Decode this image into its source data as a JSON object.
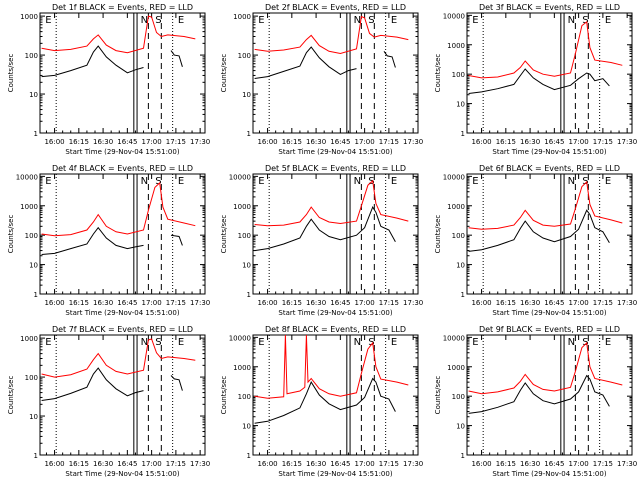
{
  "chart_data": [
    {
      "type": "line",
      "title": "Det 1f BLACK = Events, RED = LLD",
      "xlabel": "Start Time (29-Nov-04 15:51:00)",
      "ylabel": "Counts/sec",
      "x_ticks": [
        "16:00",
        "16:15",
        "16:30",
        "16:45",
        "17:00",
        "17:15",
        "17:30"
      ],
      "y_ticks": [
        "1",
        "10",
        "100",
        "1000"
      ],
      "ylim": [
        1,
        1000
      ],
      "y_scale": "log",
      "markers": [
        "E",
        "N",
        "S",
        "E"
      ],
      "series": [
        {
          "name": "RED",
          "color": "#ff0000",
          "x": [
            "15:52",
            "16:00",
            "16:10",
            "16:20",
            "16:24",
            "16:27",
            "16:32",
            "16:38",
            "16:45",
            "16:55",
            "16:58",
            "17:00",
            "17:03",
            "17:06",
            "17:10",
            "17:20",
            "17:27"
          ],
          "y": [
            150,
            130,
            140,
            170,
            260,
            330,
            180,
            130,
            115,
            150,
            1000,
            950,
            380,
            300,
            330,
            300,
            260
          ]
        },
        {
          "name": "BLACK",
          "color": "#000000",
          "x": [
            "15:52",
            "16:00",
            "16:10",
            "16:20",
            "16:24",
            "16:27",
            "16:32",
            "16:38",
            "16:45",
            "16:50",
            "16:55"
          ],
          "y": [
            28,
            30,
            40,
            55,
            120,
            170,
            90,
            55,
            35,
            42,
            48
          ]
        },
        {
          "name": "BLACK",
          "color": "#000000",
          "x": [
            "17:12",
            "17:14",
            "17:17",
            "17:19"
          ],
          "y": [
            130,
            100,
            95,
            50
          ]
        }
      ]
    },
    {
      "type": "line",
      "title": "Det 2f BLACK = Events, RED = LLD",
      "xlabel": "Start Time (29-Nov-04 15:51:00)",
      "ylabel": "Counts/sec",
      "x_ticks": [
        "16:00",
        "16:15",
        "16:30",
        "16:45",
        "17:00",
        "17:15",
        "17:30"
      ],
      "y_ticks": [
        "1",
        "10",
        "100",
        "1000"
      ],
      "ylim": [
        1,
        1000
      ],
      "y_scale": "log",
      "markers": [
        "E",
        "N",
        "S",
        "E"
      ],
      "series": [
        {
          "name": "RED",
          "color": "#ff0000",
          "x": [
            "15:52",
            "16:00",
            "16:10",
            "16:20",
            "16:24",
            "16:27",
            "16:32",
            "16:38",
            "16:45",
            "16:55",
            "16:58",
            "17:00",
            "17:03",
            "17:06",
            "17:10",
            "17:20",
            "17:27"
          ],
          "y": [
            140,
            125,
            135,
            160,
            250,
            320,
            175,
            125,
            110,
            145,
            980,
            900,
            360,
            290,
            320,
            290,
            250
          ]
        },
        {
          "name": "BLACK",
          "color": "#000000",
          "x": [
            "15:52",
            "16:00",
            "16:10",
            "16:20",
            "16:24",
            "16:27",
            "16:32",
            "16:38",
            "16:45",
            "16:50",
            "16:55"
          ],
          "y": [
            25,
            28,
            38,
            52,
            115,
            160,
            85,
            50,
            32,
            40,
            45
          ]
        },
        {
          "name": "BLACK",
          "color": "#000000",
          "x": [
            "17:12",
            "17:14",
            "17:17",
            "17:19"
          ],
          "y": [
            125,
            95,
            90,
            48
          ]
        }
      ]
    },
    {
      "type": "line",
      "title": "Det 3f BLACK = Events, RED = LLD",
      "xlabel": "Start Time (29-Nov-04 15:51:00)",
      "ylabel": "Counts/sec",
      "x_ticks": [
        "16:00",
        "16:15",
        "16:30",
        "16:45",
        "17:00",
        "17:15",
        "17:30"
      ],
      "y_ticks": [
        "1",
        "10",
        "100",
        "1000",
        "10000"
      ],
      "ylim": [
        1,
        10000
      ],
      "y_scale": "log",
      "markers": [
        "E",
        "N",
        "S",
        "E"
      ],
      "series": [
        {
          "name": "RED",
          "color": "#ff0000",
          "x": [
            "15:52",
            "16:00",
            "16:10",
            "16:20",
            "16:24",
            "16:27",
            "16:32",
            "16:38",
            "16:45",
            "16:55",
            "16:58",
            "17:02",
            "17:05",
            "17:07",
            "17:10",
            "17:20",
            "17:27"
          ],
          "y": [
            90,
            75,
            80,
            110,
            170,
            280,
            140,
            100,
            85,
            110,
            500,
            4500,
            6000,
            800,
            300,
            250,
            200
          ]
        },
        {
          "name": "BLACK",
          "color": "#000000",
          "x": [
            "15:52",
            "16:00",
            "16:10",
            "16:20",
            "16:24",
            "16:27",
            "16:32",
            "16:38",
            "16:45",
            "16:55",
            "17:00",
            "17:05",
            "17:07",
            "17:10",
            "17:15",
            "17:19"
          ],
          "y": [
            22,
            25,
            32,
            45,
            90,
            150,
            75,
            45,
            30,
            42,
            70,
            110,
            100,
            60,
            70,
            40
          ]
        }
      ]
    },
    {
      "type": "line",
      "title": "Det 4f BLACK = Events, RED = LLD",
      "xlabel": "Start Time (29-Nov-04 15:51:00)",
      "ylabel": "Counts/sec",
      "x_ticks": [
        "16:00",
        "16:15",
        "16:30",
        "16:45",
        "17:00",
        "17:15",
        "17:30"
      ],
      "y_ticks": [
        "1",
        "10",
        "100",
        "1000",
        "10000"
      ],
      "ylim": [
        1,
        10000
      ],
      "y_scale": "log",
      "markers": [
        "E",
        "N",
        "S",
        "E"
      ],
      "series": [
        {
          "name": "RED",
          "color": "#ff0000",
          "x": [
            "15:52",
            "16:00",
            "16:10",
            "16:20",
            "16:24",
            "16:27",
            "16:32",
            "16:38",
            "16:45",
            "16:55",
            "16:58",
            "17:02",
            "17:05",
            "17:07",
            "17:10",
            "17:20",
            "17:27"
          ],
          "y": [
            110,
            95,
            105,
            150,
            280,
            500,
            200,
            130,
            110,
            150,
            700,
            4200,
            6000,
            900,
            350,
            260,
            210
          ]
        },
        {
          "name": "BLACK",
          "color": "#000000",
          "x": [
            "15:52",
            "16:00",
            "16:10",
            "16:20",
            "16:24",
            "16:27",
            "16:32",
            "16:38",
            "16:45",
            "16:50",
            "16:55"
          ],
          "y": [
            22,
            24,
            35,
            50,
            110,
            180,
            80,
            45,
            35,
            40,
            45
          ]
        },
        {
          "name": "BLACK",
          "color": "#000000",
          "x": [
            "17:12",
            "17:14",
            "17:17",
            "17:19"
          ],
          "y": [
            100,
            95,
            90,
            45
          ]
        }
      ]
    },
    {
      "type": "line",
      "title": "Det 5f BLACK = Events, RED = LLD",
      "xlabel": "Start Time (29-Nov-04 15:51:00)",
      "ylabel": "Counts/sec",
      "x_ticks": [
        "16:00",
        "16:15",
        "16:30",
        "16:45",
        "17:00",
        "17:15",
        "17:30"
      ],
      "y_ticks": [
        "1",
        "10",
        "100",
        "1000",
        "10000"
      ],
      "ylim": [
        1,
        10000
      ],
      "y_scale": "log",
      "markers": [
        "E",
        "N",
        "S",
        "E"
      ],
      "series": [
        {
          "name": "RED",
          "color": "#ff0000",
          "x": [
            "15:52",
            "16:00",
            "16:10",
            "16:20",
            "16:24",
            "16:27",
            "16:32",
            "16:38",
            "16:45",
            "16:55",
            "16:58",
            "17:02",
            "17:05",
            "17:07",
            "17:10",
            "17:20",
            "17:27"
          ],
          "y": [
            230,
            210,
            220,
            280,
            500,
            900,
            400,
            280,
            250,
            300,
            1000,
            5000,
            7000,
            1200,
            500,
            380,
            300
          ]
        },
        {
          "name": "BLACK",
          "color": "#000000",
          "x": [
            "15:52",
            "16:00",
            "16:10",
            "16:20",
            "16:24",
            "16:27",
            "16:32",
            "16:38",
            "16:45",
            "16:55",
            "17:00",
            "17:05",
            "17:07",
            "17:10",
            "17:15",
            "17:19"
          ],
          "y": [
            30,
            35,
            50,
            80,
            200,
            350,
            150,
            90,
            70,
            100,
            180,
            900,
            600,
            200,
            150,
            60
          ]
        }
      ]
    },
    {
      "type": "line",
      "title": "Det 6f BLACK = Events, RED = LLD",
      "xlabel": "Start Time (29-Nov-04 15:51:00)",
      "ylabel": "Counts/sec",
      "x_ticks": [
        "16:00",
        "16:15",
        "16:30",
        "16:45",
        "17:00",
        "17:15",
        "17:30"
      ],
      "y_ticks": [
        "1",
        "10",
        "100",
        "1000",
        "10000"
      ],
      "ylim": [
        1,
        10000
      ],
      "y_scale": "log",
      "markers": [
        "E",
        "N",
        "S",
        "E"
      ],
      "series": [
        {
          "name": "RED",
          "color": "#ff0000",
          "x": [
            "15:52",
            "16:00",
            "16:10",
            "16:20",
            "16:24",
            "16:27",
            "16:32",
            "16:38",
            "16:45",
            "16:55",
            "16:58",
            "17:02",
            "17:05",
            "17:07",
            "17:10",
            "17:20",
            "17:27"
          ],
          "y": [
            180,
            160,
            170,
            220,
            400,
            700,
            320,
            220,
            200,
            240,
            800,
            4500,
            6500,
            1100,
            450,
            330,
            260
          ]
        },
        {
          "name": "BLACK",
          "color": "#000000",
          "x": [
            "15:52",
            "16:00",
            "16:10",
            "16:20",
            "16:24",
            "16:27",
            "16:32",
            "16:38",
            "16:45",
            "16:55",
            "17:00",
            "17:05",
            "17:07",
            "17:10",
            "17:15",
            "17:19"
          ],
          "y": [
            28,
            32,
            45,
            70,
            170,
            300,
            130,
            80,
            60,
            90,
            160,
            700,
            500,
            180,
            130,
            55
          ]
        }
      ]
    },
    {
      "type": "line",
      "title": "Det 7f BLACK = Events, RED = LLD",
      "xlabel": "Start Time (29-Nov-04 15:51:00)",
      "ylabel": "Counts/sec",
      "x_ticks": [
        "16:00",
        "16:15",
        "16:30",
        "16:45",
        "17:00",
        "17:15",
        "17:30"
      ],
      "y_ticks": [
        "1",
        "10",
        "100",
        "1000"
      ],
      "ylim": [
        1,
        1000
      ],
      "y_scale": "log",
      "markers": [
        "E",
        "N",
        "S",
        "E"
      ],
      "series": [
        {
          "name": "RED",
          "color": "#ff0000",
          "x": [
            "15:52",
            "16:00",
            "16:10",
            "16:20",
            "16:24",
            "16:27",
            "16:32",
            "16:38",
            "16:45",
            "16:55",
            "16:58",
            "17:00",
            "17:03",
            "17:06",
            "17:10",
            "17:20",
            "17:27"
          ],
          "y": [
            120,
            100,
            115,
            160,
            280,
            400,
            200,
            140,
            120,
            150,
            900,
            950,
            420,
            300,
            330,
            300,
            270
          ]
        },
        {
          "name": "BLACK",
          "color": "#000000",
          "x": [
            "15:52",
            "16:00",
            "16:10",
            "16:20",
            "16:24",
            "16:27",
            "16:32",
            "16:38",
            "16:45",
            "16:50",
            "16:55"
          ],
          "y": [
            25,
            28,
            38,
            55,
            120,
            170,
            85,
            50,
            33,
            40,
            45
          ]
        },
        {
          "name": "BLACK",
          "color": "#000000",
          "x": [
            "17:12",
            "17:14",
            "17:17",
            "17:19"
          ],
          "y": [
            110,
            90,
            85,
            45
          ]
        }
      ]
    },
    {
      "type": "line",
      "title": "Det 8f BLACK = Events, RED = LLD",
      "xlabel": "Start Time (29-Nov-04 15:51:00)",
      "ylabel": "Counts/sec",
      "x_ticks": [
        "16:00",
        "16:15",
        "16:30",
        "16:45",
        "17:00",
        "17:15",
        "17:30"
      ],
      "y_ticks": [
        "1",
        "10",
        "100",
        "1000",
        "10000"
      ],
      "ylim": [
        1,
        10000
      ],
      "y_scale": "log",
      "markers": [
        "E",
        "N",
        "S",
        "E"
      ],
      "series": [
        {
          "name": "RED",
          "color": "#ff0000",
          "x": [
            "15:52",
            "16:00",
            "16:10",
            "16:11",
            "16:12",
            "16:20",
            "16:23",
            "16:24",
            "16:25",
            "16:27",
            "16:32",
            "16:38",
            "16:45",
            "16:55",
            "16:58",
            "17:02",
            "17:05",
            "17:07",
            "17:10",
            "17:20",
            "17:27"
          ],
          "y": [
            100,
            85,
            95,
            12000,
            120,
            150,
            200,
            12000,
            300,
            400,
            180,
            120,
            100,
            130,
            600,
            4000,
            6500,
            1000,
            380,
            300,
            240
          ]
        },
        {
          "name": "BLACK",
          "color": "#000000",
          "x": [
            "15:52",
            "16:00",
            "16:10",
            "16:20",
            "16:24",
            "16:27",
            "16:32",
            "16:38",
            "16:45",
            "16:55",
            "17:00",
            "17:05",
            "17:07",
            "17:10",
            "17:15",
            "17:19"
          ],
          "y": [
            12,
            14,
            22,
            40,
            120,
            300,
            110,
            55,
            35,
            50,
            90,
            400,
            300,
            100,
            80,
            30
          ]
        }
      ]
    },
    {
      "type": "line",
      "title": "Det 9f BLACK = Events, RED = LLD",
      "xlabel": "Start Time (29-Nov-04 15:51:00)",
      "ylabel": "Counts/sec",
      "x_ticks": [
        "16:00",
        "16:15",
        "16:30",
        "16:45",
        "17:00",
        "17:15",
        "17:30"
      ],
      "y_ticks": [
        "1",
        "10",
        "100",
        "1000",
        "10000"
      ],
      "ylim": [
        1,
        10000
      ],
      "y_scale": "log",
      "markers": [
        "E",
        "N",
        "S",
        "E"
      ],
      "series": [
        {
          "name": "RED",
          "color": "#ff0000",
          "x": [
            "15:52",
            "16:00",
            "16:10",
            "16:20",
            "16:24",
            "16:27",
            "16:32",
            "16:38",
            "16:45",
            "16:55",
            "16:58",
            "17:02",
            "17:05",
            "17:07",
            "17:10",
            "17:20",
            "17:27"
          ],
          "y": [
            150,
            120,
            140,
            190,
            320,
            550,
            250,
            170,
            150,
            200,
            700,
            4500,
            6500,
            1000,
            400,
            300,
            240
          ]
        },
        {
          "name": "BLACK",
          "color": "#000000",
          "x": [
            "15:52",
            "16:00",
            "16:10",
            "16:20",
            "16:24",
            "16:27",
            "16:32",
            "16:38",
            "16:45",
            "16:55",
            "17:00",
            "17:05",
            "17:07",
            "17:10",
            "17:15",
            "17:19"
          ],
          "y": [
            26,
            30,
            42,
            65,
            160,
            280,
            120,
            70,
            55,
            80,
            140,
            500,
            380,
            140,
            110,
            45
          ]
        }
      ]
    }
  ]
}
